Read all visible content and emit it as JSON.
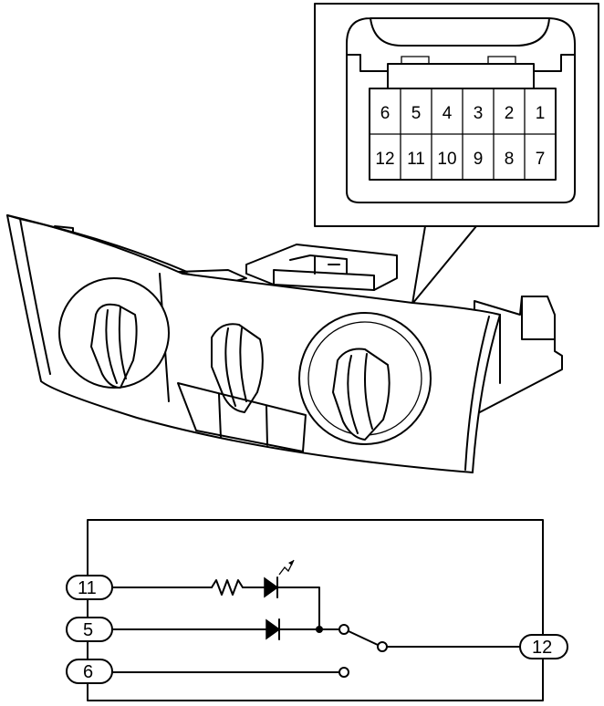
{
  "connector": {
    "pins_top": [
      "6",
      "5",
      "4",
      "3",
      "2",
      "1"
    ],
    "pins_bottom": [
      "12",
      "11",
      "10",
      "9",
      "8",
      "7"
    ]
  },
  "schematic": {
    "terminals": {
      "t11": "11",
      "t5": "5",
      "t6": "6",
      "t12": "12"
    }
  }
}
